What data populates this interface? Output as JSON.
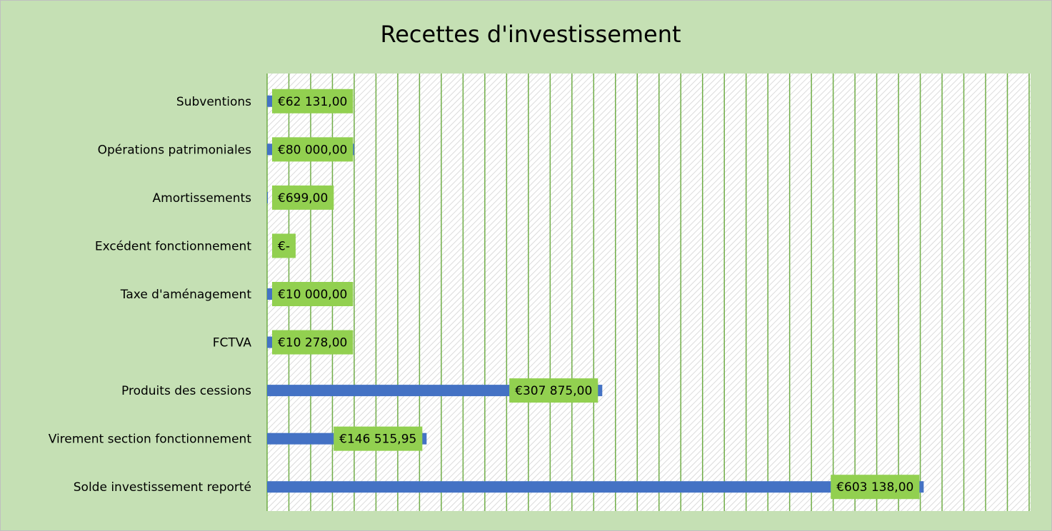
{
  "chart_data": {
    "type": "barh",
    "title": "Recettes d'investissement",
    "categories": [
      "Subventions",
      "Opérations patrimoniales",
      "Amortissements",
      "Excédent fonctionnement",
      "Taxe d'aménagement",
      "FCTVA",
      "Produits des cessions",
      "Virement section fonctionnement",
      "Solde investissement reporté"
    ],
    "values": [
      62131,
      80000,
      699,
      0,
      10000,
      10278,
      307875,
      146515.95,
      603138
    ],
    "value_labels": [
      "€62 131,00",
      "€80 000,00",
      "€699,00",
      "€-",
      "€10 000,00",
      "€10 278,00",
      "€307 875,00",
      "€146 515,95",
      "€603 138,00"
    ],
    "color": "#4472c4",
    "label_color": "#92d050",
    "grid_color": "#70ad47",
    "xlim": [
      0,
      700000
    ],
    "xticks": [
      0,
      20000,
      40000,
      60000,
      80000,
      100000,
      120000,
      140000,
      160000,
      180000,
      200000,
      220000,
      240000,
      260000,
      280000,
      300000,
      320000,
      340000,
      360000,
      380000,
      400000,
      420000,
      440000,
      460000,
      480000,
      500000,
      520000,
      540000,
      560000,
      580000,
      600000,
      620000,
      640000,
      660000,
      680000,
      700000
    ],
    "grid": true
  }
}
